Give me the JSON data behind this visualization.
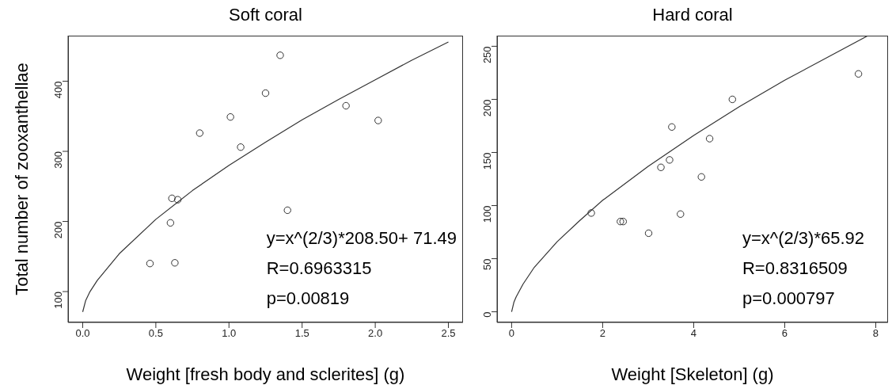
{
  "chart_data": [
    {
      "type": "scatter",
      "title": "Soft coral",
      "xlabel": "Weight [fresh body and sclerites] (g)",
      "ylabel": "Total number of zooxanthellae",
      "xlim": [
        -0.1,
        2.6
      ],
      "ylim": [
        56,
        465
      ],
      "xticks": [
        {
          "value": 0,
          "label": "0.0"
        },
        {
          "value": 0.5,
          "label": "0.5"
        },
        {
          "value": 1,
          "label": "1.0"
        },
        {
          "value": 1.5,
          "label": "1.5"
        },
        {
          "value": 2,
          "label": "2.0"
        },
        {
          "value": 2.5,
          "label": "2.5"
        }
      ],
      "yticks": [
        100,
        200,
        300,
        400
      ],
      "series": [
        {
          "type": "scatter",
          "color": "#333333",
          "marker": "circle",
          "x": [
            0.46,
            0.63,
            0.6,
            0.61,
            0.65,
            0.8,
            1.01,
            1.08,
            1.25,
            1.35,
            1.4,
            1.8,
            2.02
          ],
          "values": [
            140,
            141,
            198,
            233,
            231,
            326,
            349,
            306,
            383,
            437,
            216,
            365,
            344
          ]
        },
        {
          "type": "line",
          "color": "#333333",
          "line_style": "solid",
          "marker": "none",
          "x": [
            0,
            0.02,
            0.05,
            0.1,
            0.25,
            0.5,
            0.75,
            1,
            1.25,
            1.5,
            1.75,
            2,
            2.25,
            2.5
          ],
          "values": [
            71,
            87,
            100,
            116,
            154,
            203,
            244,
            280,
            313,
            345,
            374,
            402,
            430,
            456
          ]
        }
      ],
      "annotations": [
        "y=x^(2/3)*208.50+ 71.49",
        "R=0.6963315",
        "p=0.00819"
      ]
    },
    {
      "type": "scatter",
      "title": "Hard coral",
      "xlabel": "Weight [Skeleton] (g)",
      "xlim": [
        -0.32,
        8.27
      ],
      "ylim": [
        -10,
        260
      ],
      "xticks": [
        0,
        2,
        4,
        6,
        8
      ],
      "yticks": [
        0,
        50,
        100,
        150,
        200,
        250
      ],
      "series": [
        {
          "type": "scatter",
          "color": "#333333",
          "marker": "circle",
          "x": [
            1.75,
            2.39,
            2.45,
            3.01,
            3.28,
            3.47,
            3.52,
            3.71,
            4.17,
            4.35,
            4.85,
            7.62
          ],
          "values": [
            93,
            85,
            85,
            74,
            136,
            143,
            174,
            92,
            127,
            163,
            200,
            224
          ]
        },
        {
          "type": "line",
          "color": "#333333",
          "line_style": "solid",
          "marker": "none",
          "x": [
            0,
            0.05,
            0.1,
            0.25,
            0.5,
            1,
            1.5,
            2,
            3,
            4,
            5,
            6,
            7,
            7.83
          ],
          "values": [
            0,
            9,
            14,
            26,
            42,
            66,
            86,
            105,
            137,
            166,
            193,
            218,
            241,
            260
          ]
        }
      ],
      "annotations": [
        "y=x^(2/3)*65.92",
        "R=0.8316509",
        "p=0.000797"
      ]
    }
  ]
}
